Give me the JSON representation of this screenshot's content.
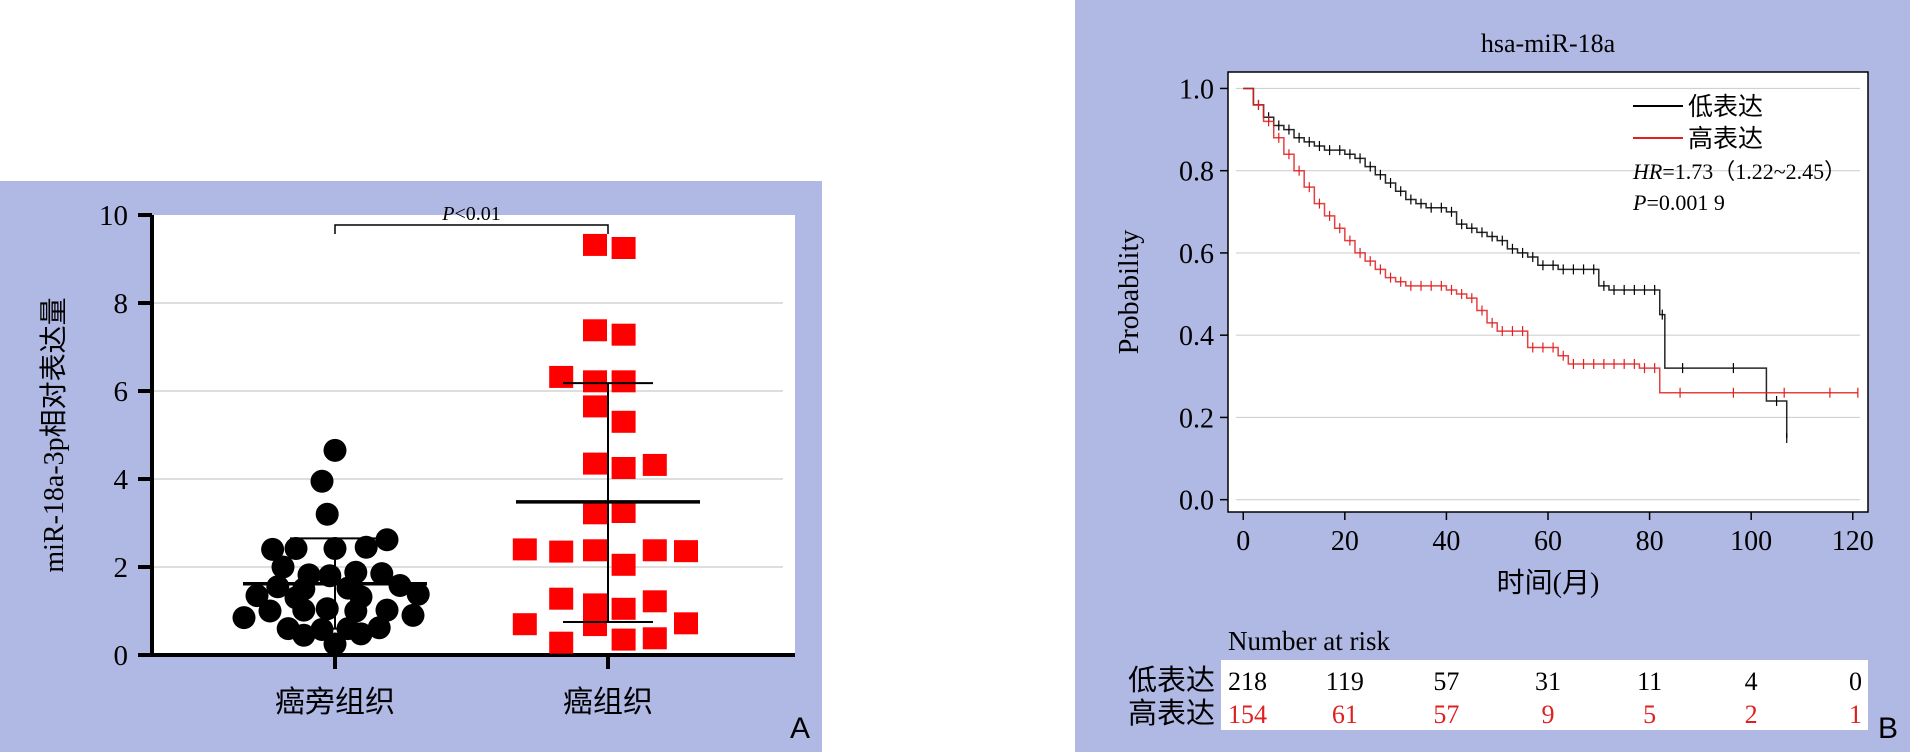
{
  "panels": {
    "a_letter": "A",
    "b_letter": "B"
  },
  "chart_data": [
    {
      "type": "scatter",
      "title": "",
      "ylabel": "miR-18a-3p相对表达量",
      "xlabel": "",
      "categories": [
        "癌旁组织",
        "癌组织"
      ],
      "ylim": [
        0,
        10
      ],
      "yticks": [
        0,
        2,
        4,
        6,
        8,
        10
      ],
      "grid": true,
      "annotation": "P<0.01",
      "colors": {
        "group1": "#000000",
        "group2": "#ff0000",
        "plot_bg": "#ffffff",
        "grid": "#d4d4d4"
      },
      "series": [
        {
          "name": "癌旁组织",
          "marker": "circle",
          "mean": 1.62,
          "sd_upper": 2.65,
          "sd_lower": 0.6,
          "points": [
            [
              0,
              4.65
            ],
            [
              -0.05,
              3.95
            ],
            [
              -0.03,
              3.2
            ],
            [
              -0.24,
              2.4
            ],
            [
              -0.15,
              2.42
            ],
            [
              0,
              2.42
            ],
            [
              0.12,
              2.45
            ],
            [
              0.2,
              2.62
            ],
            [
              -0.2,
              2.0
            ],
            [
              -0.1,
              1.82
            ],
            [
              -0.02,
              1.8
            ],
            [
              0.08,
              1.88
            ],
            [
              0.18,
              1.85
            ],
            [
              -0.22,
              1.55
            ],
            [
              -0.12,
              1.5
            ],
            [
              0.05,
              1.52
            ],
            [
              0.25,
              1.58
            ],
            [
              -0.3,
              1.35
            ],
            [
              -0.15,
              1.3
            ],
            [
              0.1,
              1.32
            ],
            [
              0.32,
              1.38
            ],
            [
              -0.25,
              1.0
            ],
            [
              -0.12,
              1.02
            ],
            [
              -0.03,
              1.05
            ],
            [
              0.08,
              1.0
            ],
            [
              0.2,
              1.02
            ],
            [
              -0.35,
              0.85
            ],
            [
              0.3,
              0.9
            ],
            [
              -0.18,
              0.6
            ],
            [
              -0.05,
              0.58
            ],
            [
              0.05,
              0.6
            ],
            [
              0.17,
              0.62
            ],
            [
              -0.12,
              0.45
            ],
            [
              0.1,
              0.48
            ],
            [
              0.0,
              0.25
            ]
          ]
        },
        {
          "name": "癌组织",
          "marker": "square",
          "mean": 3.48,
          "sd_upper": 6.18,
          "sd_lower": 0.75,
          "points": [
            [
              -0.05,
              9.32
            ],
            [
              0.06,
              9.25
            ],
            [
              -0.05,
              7.38
            ],
            [
              0.06,
              7.28
            ],
            [
              -0.18,
              6.32
            ],
            [
              -0.05,
              6.22
            ],
            [
              0.06,
              6.22
            ],
            [
              -0.05,
              5.65
            ],
            [
              0.06,
              5.3
            ],
            [
              -0.05,
              4.35
            ],
            [
              0.06,
              4.25
            ],
            [
              0.18,
              4.32
            ],
            [
              -0.05,
              3.22
            ],
            [
              0.06,
              3.25
            ],
            [
              -0.32,
              2.4
            ],
            [
              -0.18,
              2.35
            ],
            [
              -0.05,
              2.38
            ],
            [
              0.18,
              2.38
            ],
            [
              0.3,
              2.36
            ],
            [
              0.06,
              2.05
            ],
            [
              -0.18,
              1.28
            ],
            [
              -0.05,
              1.15
            ],
            [
              0.06,
              1.05
            ],
            [
              0.18,
              1.22
            ],
            [
              -0.32,
              0.7
            ],
            [
              -0.05,
              0.68
            ],
            [
              0.3,
              0.72
            ],
            [
              -0.18,
              0.28
            ],
            [
              0.06,
              0.35
            ],
            [
              0.18,
              0.38
            ]
          ]
        }
      ]
    },
    {
      "type": "line",
      "title": "hsa-miR-18a",
      "xlabel": "时间(月)",
      "ylabel": "Probability",
      "xlim": [
        -3,
        123
      ],
      "ylim": [
        -0.03,
        1.04
      ],
      "xticks": [
        0,
        20,
        40,
        60,
        80,
        100,
        120
      ],
      "yticks": [
        "0.0",
        "0.2",
        "0.4",
        "0.6",
        "0.8",
        "1.0"
      ],
      "grid": true,
      "legend_position": "top-right",
      "colors": {
        "low": "#000000",
        "high": "#e02020",
        "grid": "#d0d0d0"
      },
      "hr_label": "HR",
      "hr_value": "=1.73（1.22~2.45）",
      "p_label": "P",
      "p_value": "=0.001 9",
      "series": [
        {
          "name": "低表达",
          "color": "#000000",
          "x": [
            0,
            2,
            4,
            6,
            8,
            10,
            12,
            14,
            16,
            18,
            20,
            22,
            24,
            26,
            28,
            30,
            32,
            34,
            36,
            38,
            40,
            42,
            44,
            46,
            48,
            50,
            52,
            54,
            56,
            58,
            60,
            62,
            64,
            66,
            68,
            70,
            72,
            74,
            76,
            78,
            80,
            82,
            83,
            90,
            103,
            107
          ],
          "y": [
            1.0,
            0.96,
            0.93,
            0.91,
            0.9,
            0.88,
            0.87,
            0.86,
            0.85,
            0.85,
            0.84,
            0.83,
            0.81,
            0.79,
            0.77,
            0.75,
            0.73,
            0.72,
            0.71,
            0.71,
            0.7,
            0.67,
            0.66,
            0.65,
            0.64,
            0.63,
            0.61,
            0.6,
            0.59,
            0.57,
            0.57,
            0.56,
            0.56,
            0.56,
            0.56,
            0.52,
            0.51,
            0.51,
            0.51,
            0.51,
            0.51,
            0.45,
            0.32,
            0.32,
            0.24,
            0.15
          ]
        },
        {
          "name": "高表达",
          "color": "#e02020",
          "x": [
            0,
            2,
            4,
            6,
            8,
            10,
            12,
            14,
            16,
            18,
            20,
            22,
            24,
            26,
            28,
            30,
            32,
            34,
            36,
            38,
            40,
            42,
            44,
            46,
            48,
            50,
            52,
            54,
            56,
            58,
            60,
            62,
            64,
            66,
            68,
            70,
            72,
            74,
            76,
            78,
            80,
            82,
            90,
            103,
            110,
            121
          ],
          "y": [
            1.0,
            0.96,
            0.92,
            0.88,
            0.84,
            0.8,
            0.76,
            0.72,
            0.69,
            0.66,
            0.63,
            0.6,
            0.58,
            0.56,
            0.54,
            0.53,
            0.52,
            0.52,
            0.52,
            0.52,
            0.51,
            0.5,
            0.49,
            0.46,
            0.43,
            0.41,
            0.41,
            0.41,
            0.37,
            0.37,
            0.37,
            0.35,
            0.33,
            0.33,
            0.33,
            0.33,
            0.33,
            0.33,
            0.33,
            0.32,
            0.32,
            0.26,
            0.26,
            0.26,
            0.26,
            0.26
          ]
        }
      ],
      "risk_table": {
        "title": "Number at risk",
        "rows": [
          {
            "label": "低表达",
            "color": "#000000",
            "values": [
              "218",
              "119",
              "57",
              "31",
              "11",
              "4",
              "0"
            ]
          },
          {
            "label": "高表达",
            "color": "#e02020",
            "values": [
              "154",
              "61",
              "57",
              "9",
              "5",
              "2",
              "1"
            ]
          }
        ]
      }
    }
  ]
}
